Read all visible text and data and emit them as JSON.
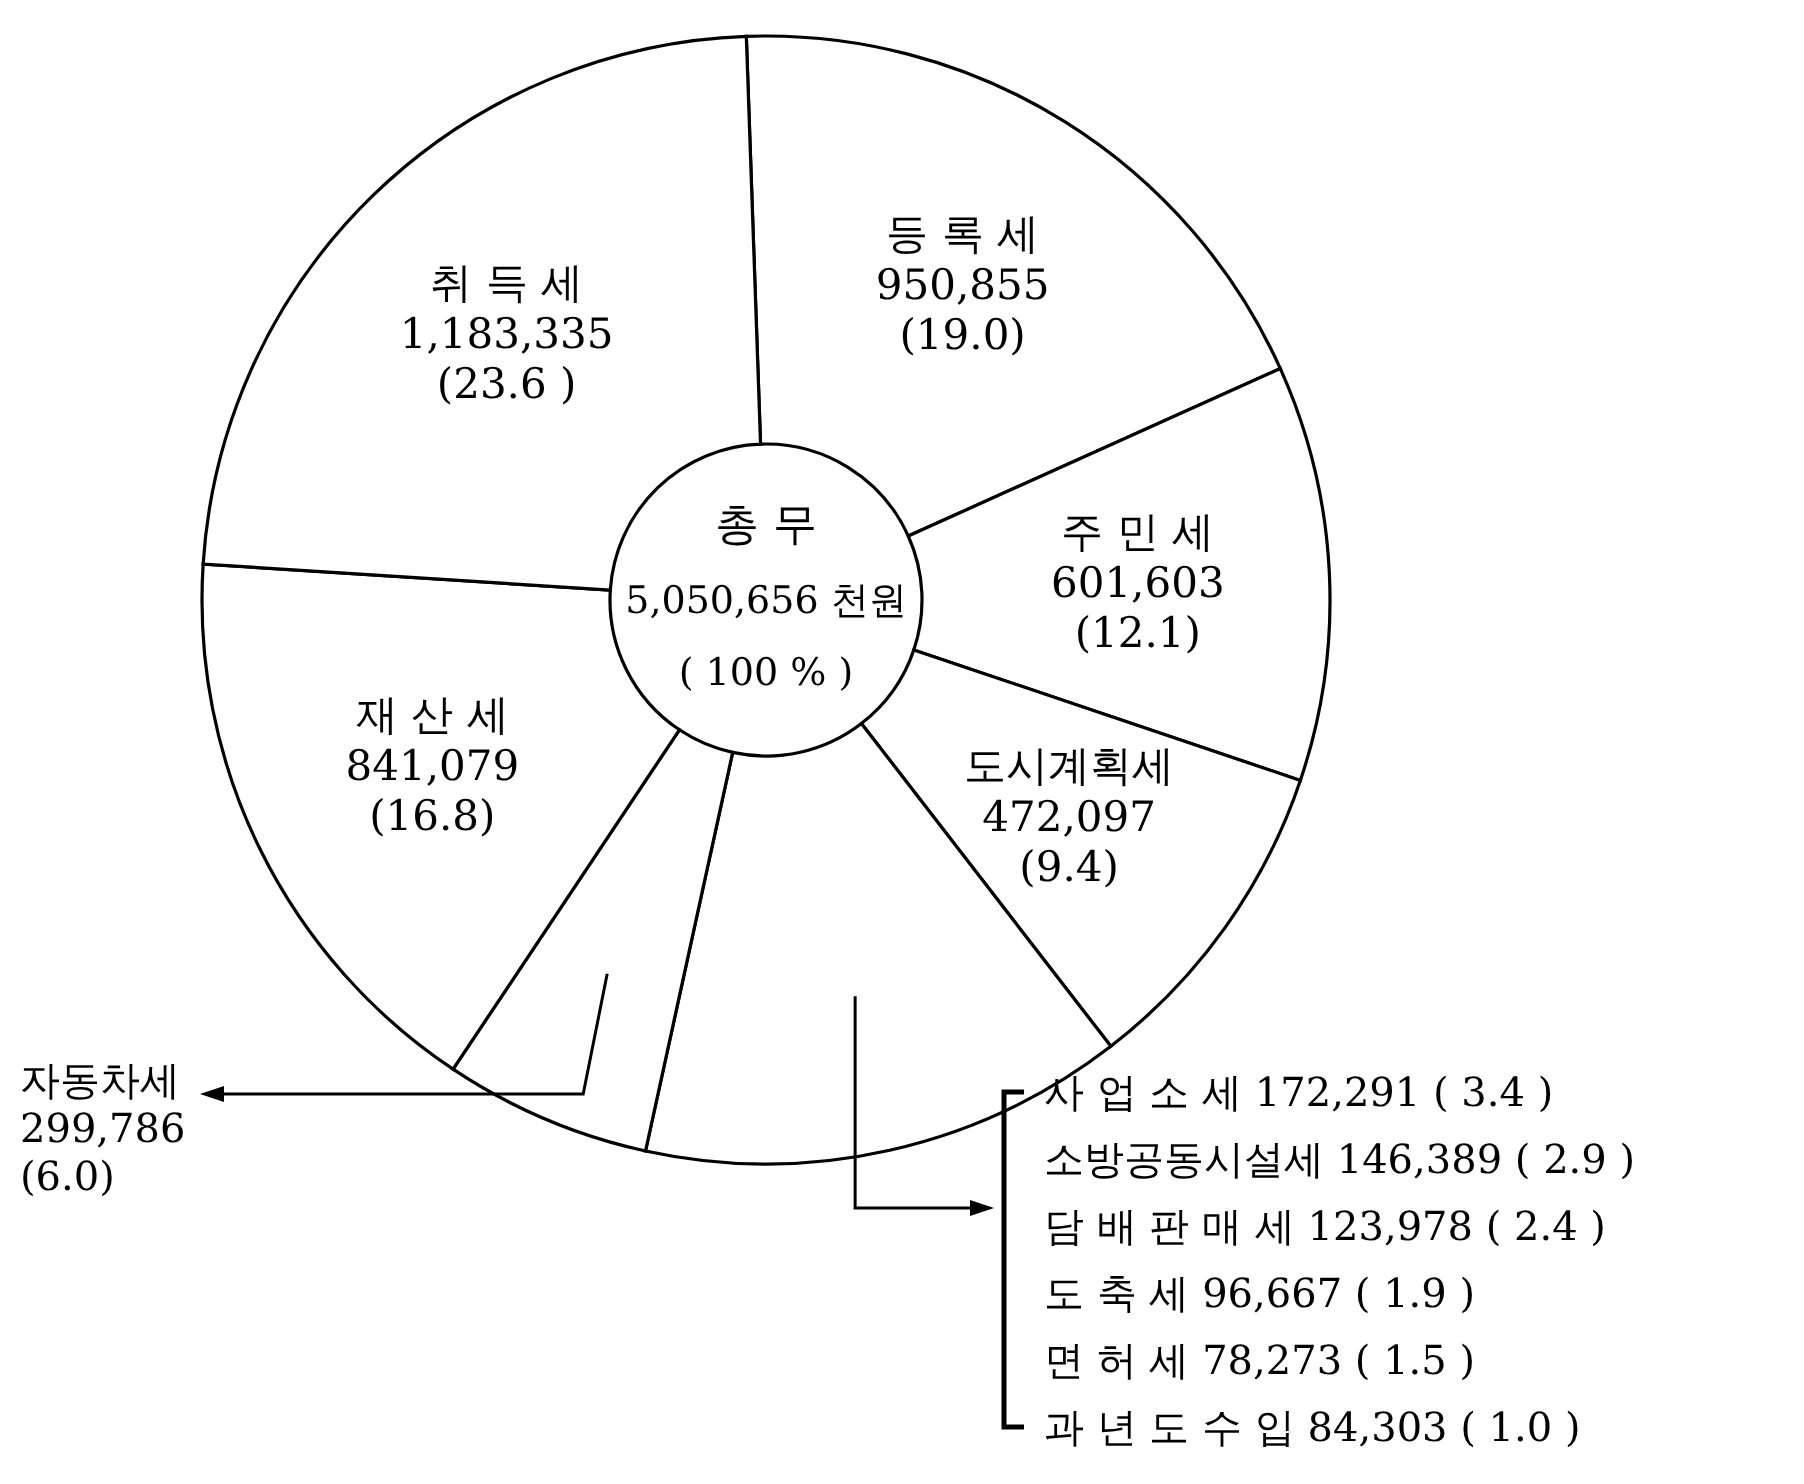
{
  "chart_data": {
    "type": "donut",
    "categories": [
      "등 록 세",
      "주 민 세",
      "도시계획세",
      null,
      "자동차세",
      "재 산 세",
      "취 득 세"
    ],
    "values": [
      950855,
      601603,
      472097,
      701901,
      299786,
      841079,
      1183335
    ],
    "value_labels": [
      "950,855\n(19.0)",
      "601,603\n(12.1)",
      "472,097\n(9.4)",
      null,
      "299,786\n(6.0)",
      "841,079\n(16.8)",
      "1,183,335\n(23.6 )"
    ],
    "colors": [
      "#ffffff",
      "#ffffff",
      "#ffffff",
      "#ffffff",
      "#ffffff",
      "#ffffff",
      "#ffffff"
    ],
    "annotations": [
      "총 무",
      "5,050,656 천원",
      "( 100 % )",
      "사 업 소 세 172,291 ( 3.4 )",
      "소방공동시설세 146,389 ( 2.9 )",
      "담 배 판 매 세 123,978 ( 2.4 )",
      "도 축 세 96,667 ( 1.9 )",
      "면 허 세 78,273 ( 1.5 )",
      "과 년 도 수 입 84,303 ( 1.0 )"
    ]
  }
}
